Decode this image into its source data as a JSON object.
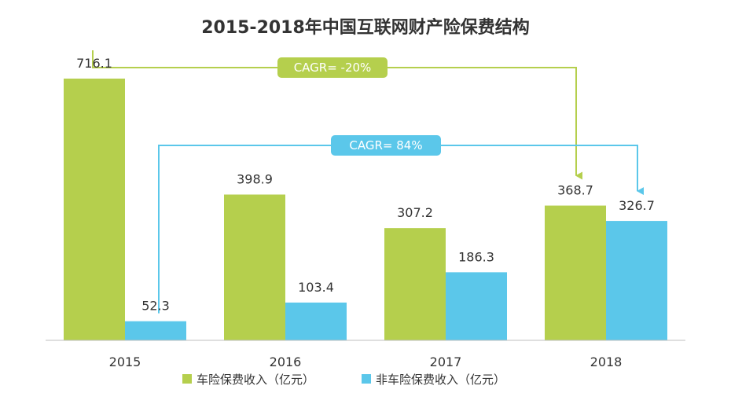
{
  "chart_data": {
    "type": "bar",
    "title": "2015-2018年中国互联网财产险保费结构",
    "categories": [
      "2015",
      "2016",
      "2017",
      "2018"
    ],
    "series": [
      {
        "name": "车险保费收入（亿元）",
        "color": "#b5cf4d",
        "values": [
          716.1,
          398.9,
          307.2,
          368.7
        ]
      },
      {
        "name": "非车险保费收入（亿元）",
        "color": "#5bc7ea",
        "values": [
          52.3,
          103.4,
          186.3,
          326.7
        ]
      }
    ],
    "ylim": [
      0,
      800
    ],
    "grid": false,
    "legend": "bottom-center",
    "annotations": [
      {
        "label": "CAGR= -20%",
        "series": 0,
        "from": "2015",
        "to": "2018",
        "color": "#b5cf4d"
      },
      {
        "label": "CAGR= 84%",
        "series": 1,
        "from": "2015",
        "to": "2018",
        "color": "#5bc7ea"
      }
    ]
  }
}
